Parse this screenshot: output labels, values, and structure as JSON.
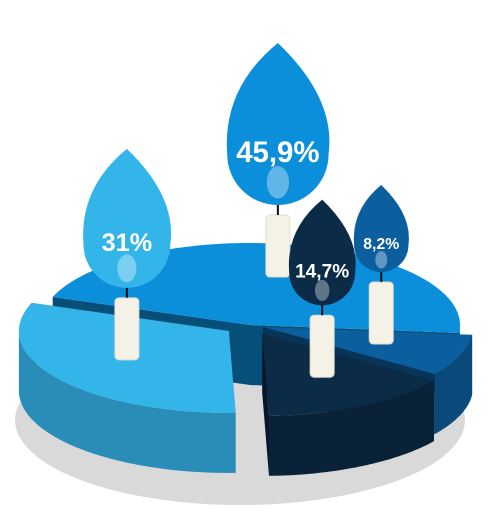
{
  "chart_data": {
    "type": "pie",
    "categories": [
      null,
      null,
      null,
      null
    ],
    "values": [
      45.9,
      8.2,
      14.7,
      31
    ],
    "value_labels": [
      "45,9%",
      "8,2%",
      "14,7%",
      "31%"
    ],
    "colors": [
      "#0b8fdb",
      "#0c5f9e",
      "#0b2b47",
      "#34b5ea"
    ]
  }
}
